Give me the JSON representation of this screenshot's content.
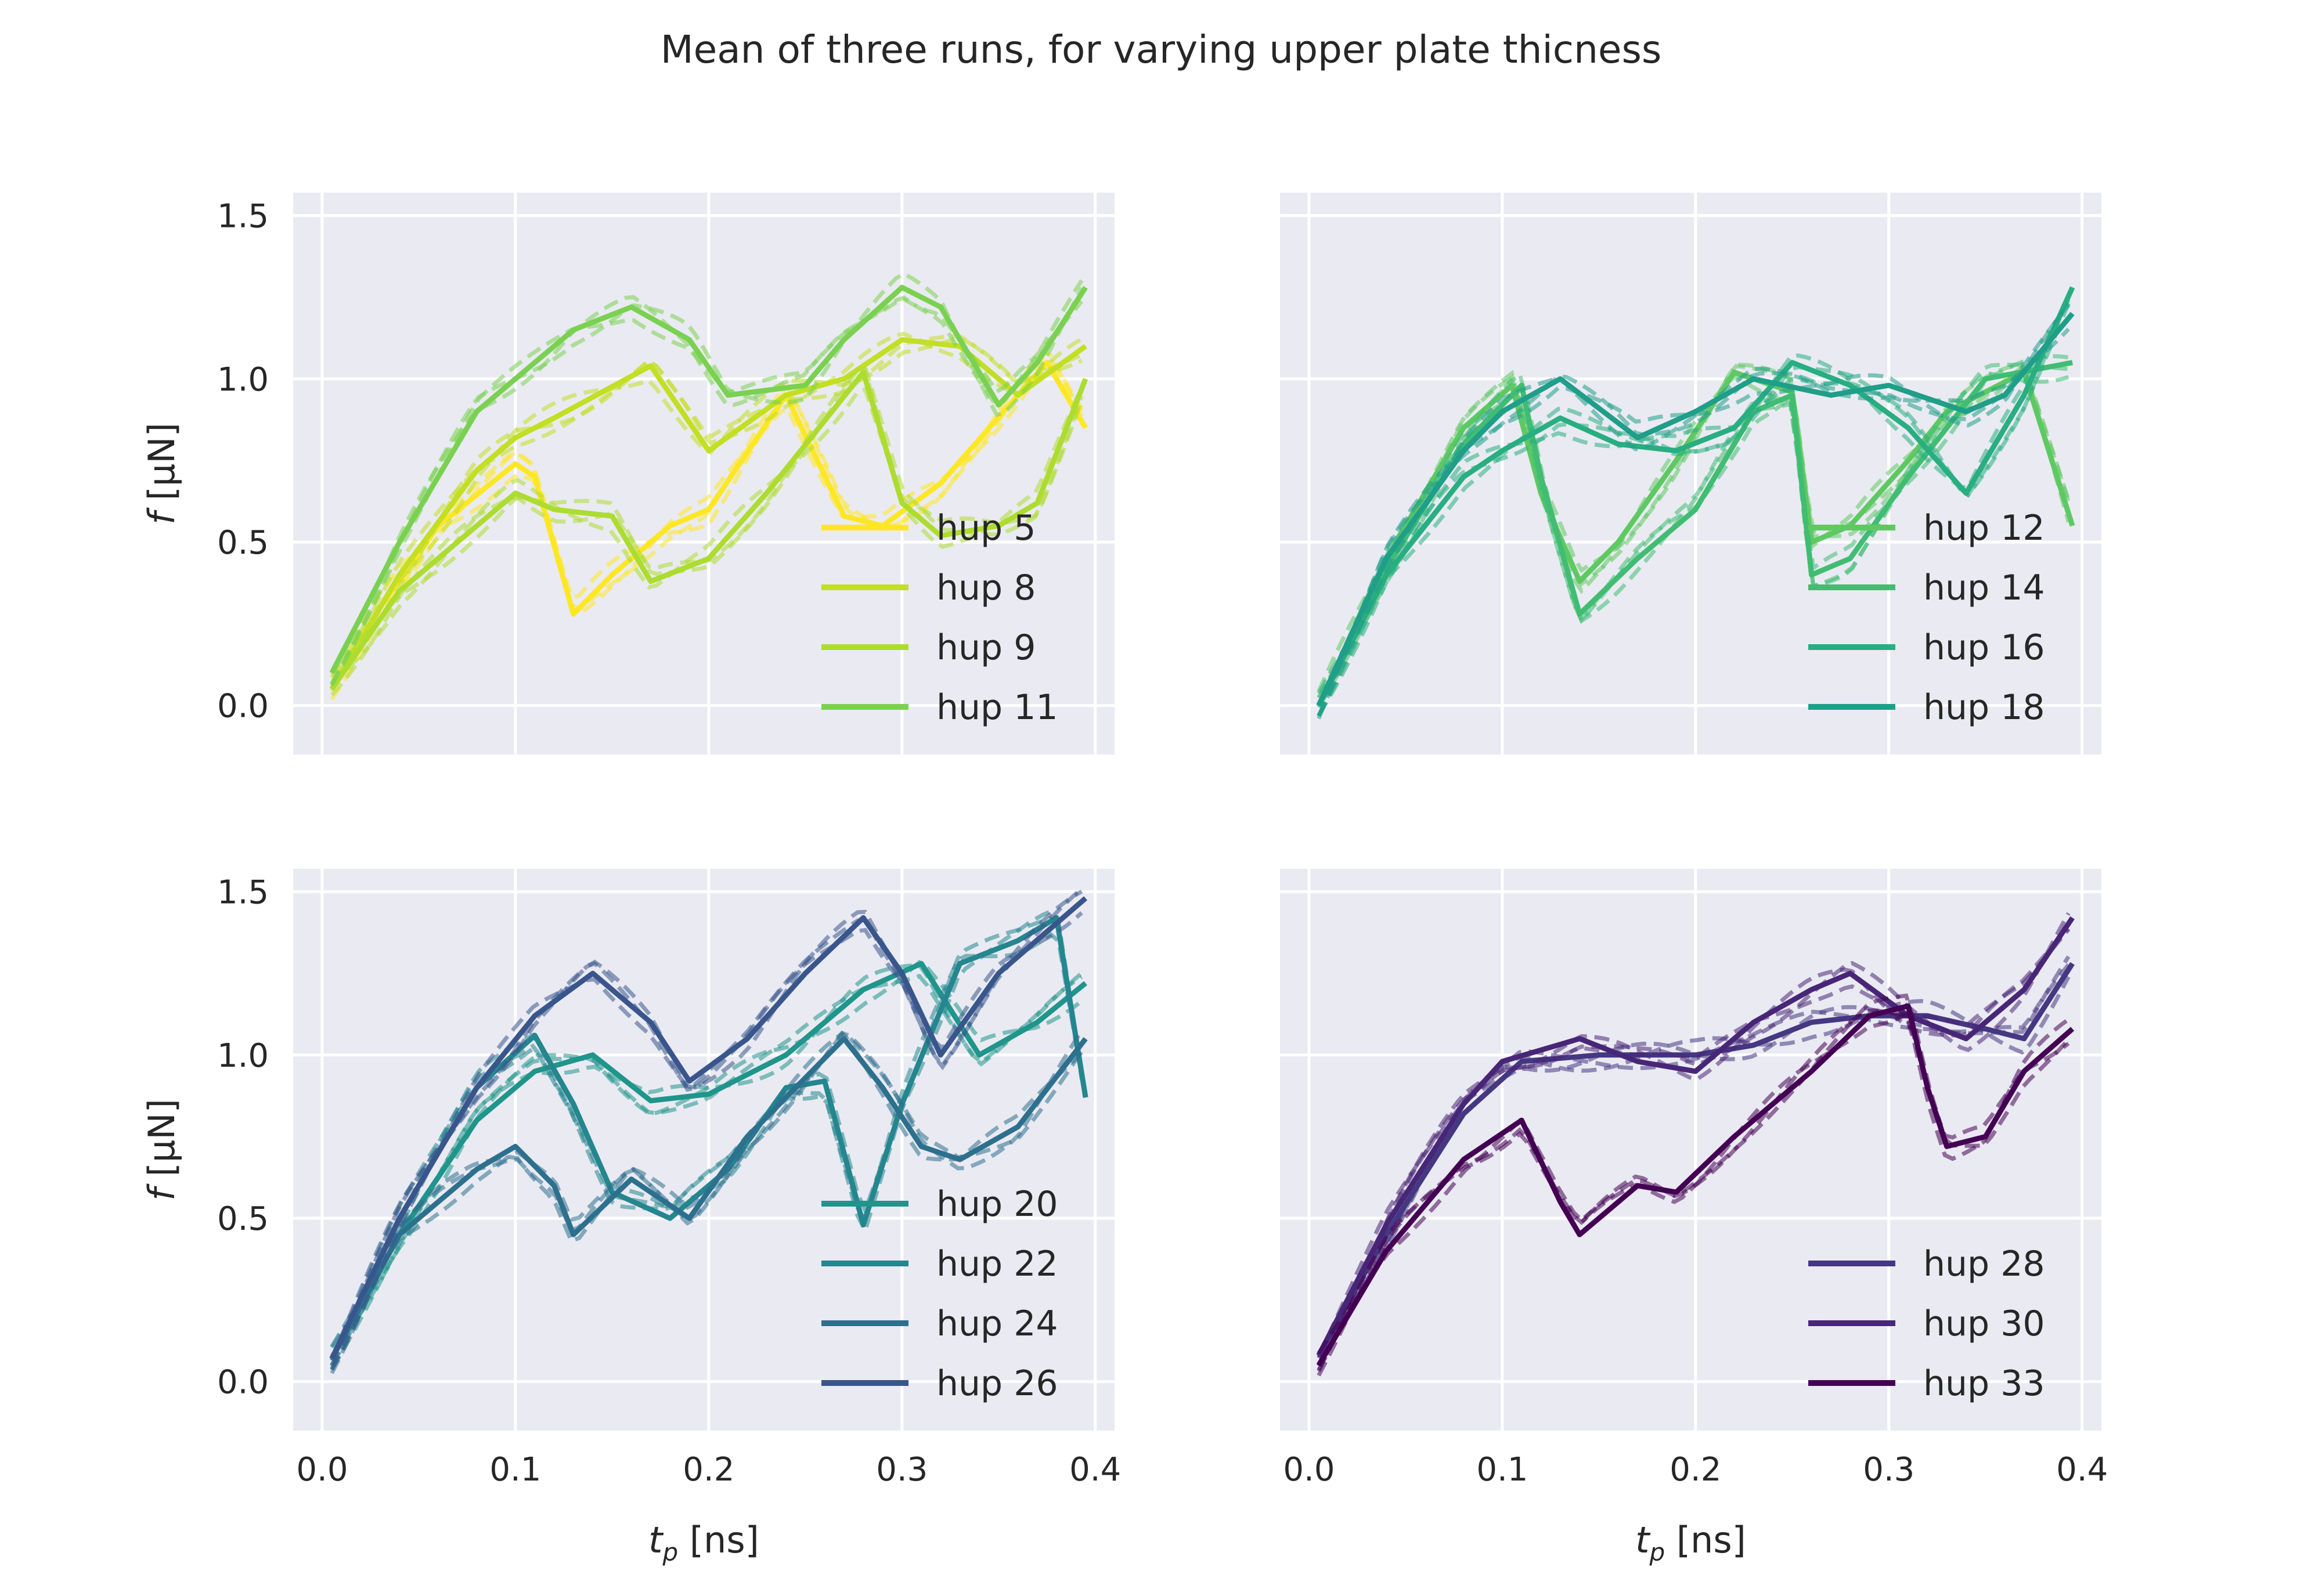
{
  "chart_data": {
    "type": "line",
    "title": "Mean of three runs, for varying upper plate thicness",
    "xlabel_main": "t",
    "xlabel_sub": "p",
    "xlabel_unit": " [ns]",
    "ylabel_main": "f",
    "ylabel_unit": " [μN]",
    "xlim": [
      -0.015,
      0.41
    ],
    "ylim": [
      -0.15,
      1.57
    ],
    "xticks": [
      "0.0",
      "0.1",
      "0.2",
      "0.3",
      "0.4"
    ],
    "xtick_values": [
      0.0,
      0.1,
      0.2,
      0.3,
      0.4
    ],
    "yticks": [
      "0.0",
      "0.5",
      "1.0",
      "1.5"
    ],
    "ytick_values": [
      0.0,
      0.5,
      1.0,
      1.5
    ],
    "line_style": "solid line = mean of three runs; dashed lines = individual runs",
    "panels": [
      {
        "series": [
          {
            "name": "hup 5",
            "color": "#fde725",
            "points": [
              [
                0.005,
                0.05
              ],
              [
                0.03,
                0.3
              ],
              [
                0.06,
                0.55
              ],
              [
                0.1,
                0.74
              ],
              [
                0.11,
                0.7
              ],
              [
                0.13,
                0.28
              ],
              [
                0.15,
                0.4
              ],
              [
                0.18,
                0.55
              ],
              [
                0.2,
                0.6
              ],
              [
                0.24,
                0.95
              ],
              [
                0.27,
                0.58
              ],
              [
                0.29,
                0.55
              ],
              [
                0.32,
                0.68
              ],
              [
                0.36,
                0.95
              ],
              [
                0.375,
                1.05
              ],
              [
                0.395,
                0.85
              ]
            ]
          },
          {
            "name": "hup 8",
            "color": "#c2df23",
            "points": [
              [
                0.005,
                0.05
              ],
              [
                0.04,
                0.4
              ],
              [
                0.08,
                0.72
              ],
              [
                0.1,
                0.82
              ],
              [
                0.12,
                0.88
              ],
              [
                0.17,
                1.04
              ],
              [
                0.2,
                0.78
              ],
              [
                0.24,
                0.95
              ],
              [
                0.27,
                1.0
              ],
              [
                0.3,
                1.12
              ],
              [
                0.33,
                1.1
              ],
              [
                0.36,
                0.95
              ],
              [
                0.395,
                1.1
              ]
            ]
          },
          {
            "name": "hup 9",
            "color": "#addc30",
            "points": [
              [
                0.005,
                0.05
              ],
              [
                0.04,
                0.35
              ],
              [
                0.08,
                0.55
              ],
              [
                0.1,
                0.65
              ],
              [
                0.12,
                0.6
              ],
              [
                0.15,
                0.58
              ],
              [
                0.17,
                0.38
              ],
              [
                0.2,
                0.45
              ],
              [
                0.23,
                0.65
              ],
              [
                0.28,
                1.02
              ],
              [
                0.3,
                0.62
              ],
              [
                0.32,
                0.52
              ],
              [
                0.35,
                0.55
              ],
              [
                0.37,
                0.62
              ],
              [
                0.395,
                1.0
              ]
            ]
          },
          {
            "name": "hup 11",
            "color": "#7ad151",
            "points": [
              [
                0.005,
                0.1
              ],
              [
                0.04,
                0.5
              ],
              [
                0.08,
                0.9
              ],
              [
                0.1,
                1.0
              ],
              [
                0.13,
                1.15
              ],
              [
                0.16,
                1.22
              ],
              [
                0.19,
                1.12
              ],
              [
                0.21,
                0.95
              ],
              [
                0.25,
                0.98
              ],
              [
                0.27,
                1.12
              ],
              [
                0.3,
                1.28
              ],
              [
                0.32,
                1.22
              ],
              [
                0.35,
                0.92
              ],
              [
                0.37,
                1.05
              ],
              [
                0.395,
                1.28
              ]
            ]
          }
        ]
      },
      {
        "series": [
          {
            "name": "hup 12",
            "color": "#5ec962",
            "points": [
              [
                0.005,
                0.0
              ],
              [
                0.04,
                0.45
              ],
              [
                0.08,
                0.85
              ],
              [
                0.105,
                0.98
              ],
              [
                0.12,
                0.65
              ],
              [
                0.14,
                0.38
              ],
              [
                0.16,
                0.5
              ],
              [
                0.19,
                0.75
              ],
              [
                0.22,
                1.02
              ],
              [
                0.25,
                0.96
              ],
              [
                0.26,
                0.5
              ],
              [
                0.28,
                0.55
              ],
              [
                0.31,
                0.75
              ],
              [
                0.33,
                0.9
              ],
              [
                0.37,
                1.02
              ],
              [
                0.395,
                0.55
              ]
            ]
          },
          {
            "name": "hup 14",
            "color": "#40bd72",
            "points": [
              [
                0.005,
                0.0
              ],
              [
                0.04,
                0.42
              ],
              [
                0.08,
                0.8
              ],
              [
                0.11,
                0.98
              ],
              [
                0.12,
                0.7
              ],
              [
                0.14,
                0.28
              ],
              [
                0.17,
                0.45
              ],
              [
                0.2,
                0.6
              ],
              [
                0.23,
                0.9
              ],
              [
                0.25,
                0.95
              ],
              [
                0.26,
                0.4
              ],
              [
                0.28,
                0.45
              ],
              [
                0.31,
                0.7
              ],
              [
                0.35,
                1.0
              ],
              [
                0.395,
                1.05
              ]
            ]
          },
          {
            "name": "hup 16",
            "color": "#28ae80",
            "points": [
              [
                0.005,
                0.0
              ],
              [
                0.04,
                0.4
              ],
              [
                0.08,
                0.7
              ],
              [
                0.1,
                0.78
              ],
              [
                0.13,
                0.88
              ],
              [
                0.16,
                0.8
              ],
              [
                0.19,
                0.78
              ],
              [
                0.22,
                0.85
              ],
              [
                0.25,
                1.05
              ],
              [
                0.28,
                0.98
              ],
              [
                0.31,
                0.85
              ],
              [
                0.34,
                0.65
              ],
              [
                0.37,
                0.95
              ],
              [
                0.395,
                1.28
              ]
            ]
          },
          {
            "name": "hup 18",
            "color": "#1f9e89",
            "points": [
              [
                0.005,
                0.0
              ],
              [
                0.04,
                0.45
              ],
              [
                0.08,
                0.78
              ],
              [
                0.1,
                0.9
              ],
              [
                0.13,
                1.0
              ],
              [
                0.17,
                0.82
              ],
              [
                0.2,
                0.9
              ],
              [
                0.23,
                1.0
              ],
              [
                0.27,
                0.95
              ],
              [
                0.3,
                0.98
              ],
              [
                0.34,
                0.9
              ],
              [
                0.36,
                0.95
              ],
              [
                0.395,
                1.2
              ]
            ]
          }
        ]
      },
      {
        "series": [
          {
            "name": "hup 20",
            "color": "#1f958b",
            "points": [
              [
                0.005,
                0.07
              ],
              [
                0.04,
                0.45
              ],
              [
                0.08,
                0.8
              ],
              [
                0.11,
                0.95
              ],
              [
                0.14,
                1.0
              ],
              [
                0.17,
                0.86
              ],
              [
                0.2,
                0.88
              ],
              [
                0.24,
                1.0
              ],
              [
                0.28,
                1.2
              ],
              [
                0.31,
                1.28
              ],
              [
                0.34,
                1.0
              ],
              [
                0.37,
                1.1
              ],
              [
                0.395,
                1.22
              ]
            ]
          },
          {
            "name": "hup 22",
            "color": "#24868e",
            "points": [
              [
                0.005,
                0.07
              ],
              [
                0.04,
                0.5
              ],
              [
                0.08,
                0.9
              ],
              [
                0.11,
                1.06
              ],
              [
                0.13,
                0.85
              ],
              [
                0.15,
                0.58
              ],
              [
                0.18,
                0.5
              ],
              [
                0.21,
                0.65
              ],
              [
                0.24,
                0.9
              ],
              [
                0.26,
                0.92
              ],
              [
                0.28,
                0.48
              ],
              [
                0.3,
                0.85
              ],
              [
                0.33,
                1.28
              ],
              [
                0.36,
                1.35
              ],
              [
                0.38,
                1.42
              ],
              [
                0.395,
                0.87
              ]
            ]
          },
          {
            "name": "hup 24",
            "color": "#2d708e",
            "points": [
              [
                0.005,
                0.07
              ],
              [
                0.04,
                0.45
              ],
              [
                0.08,
                0.65
              ],
              [
                0.1,
                0.72
              ],
              [
                0.12,
                0.6
              ],
              [
                0.13,
                0.45
              ],
              [
                0.16,
                0.62
              ],
              [
                0.19,
                0.5
              ],
              [
                0.22,
                0.75
              ],
              [
                0.27,
                1.05
              ],
              [
                0.29,
                0.9
              ],
              [
                0.31,
                0.72
              ],
              [
                0.33,
                0.68
              ],
              [
                0.36,
                0.78
              ],
              [
                0.395,
                1.05
              ]
            ]
          },
          {
            "name": "hup 26",
            "color": "#39568c",
            "points": [
              [
                0.005,
                0.07
              ],
              [
                0.04,
                0.5
              ],
              [
                0.08,
                0.9
              ],
              [
                0.11,
                1.12
              ],
              [
                0.14,
                1.25
              ],
              [
                0.17,
                1.1
              ],
              [
                0.19,
                0.92
              ],
              [
                0.22,
                1.05
              ],
              [
                0.25,
                1.25
              ],
              [
                0.28,
                1.42
              ],
              [
                0.3,
                1.25
              ],
              [
                0.32,
                1.0
              ],
              [
                0.35,
                1.25
              ],
              [
                0.395,
                1.48
              ]
            ]
          }
        ]
      },
      {
        "series": [
          {
            "name": "hup 28",
            "color": "#453781",
            "points": [
              [
                0.005,
                0.08
              ],
              [
                0.04,
                0.45
              ],
              [
                0.08,
                0.82
              ],
              [
                0.11,
                0.98
              ],
              [
                0.15,
                1.0
              ],
              [
                0.2,
                1.0
              ],
              [
                0.23,
                1.03
              ],
              [
                0.26,
                1.1
              ],
              [
                0.29,
                1.12
              ],
              [
                0.32,
                1.12
              ],
              [
                0.35,
                1.08
              ],
              [
                0.37,
                1.05
              ],
              [
                0.395,
                1.28
              ]
            ]
          },
          {
            "name": "hup 30",
            "color": "#482677",
            "points": [
              [
                0.005,
                0.08
              ],
              [
                0.04,
                0.48
              ],
              [
                0.08,
                0.85
              ],
              [
                0.1,
                0.98
              ],
              [
                0.14,
                1.05
              ],
              [
                0.17,
                0.98
              ],
              [
                0.2,
                0.95
              ],
              [
                0.23,
                1.1
              ],
              [
                0.26,
                1.2
              ],
              [
                0.28,
                1.25
              ],
              [
                0.31,
                1.12
              ],
              [
                0.34,
                1.05
              ],
              [
                0.37,
                1.2
              ],
              [
                0.395,
                1.42
              ]
            ]
          },
          {
            "name": "hup 33",
            "color": "#440154",
            "points": [
              [
                0.005,
                0.05
              ],
              [
                0.04,
                0.4
              ],
              [
                0.08,
                0.68
              ],
              [
                0.11,
                0.8
              ],
              [
                0.13,
                0.55
              ],
              [
                0.14,
                0.45
              ],
              [
                0.17,
                0.6
              ],
              [
                0.19,
                0.58
              ],
              [
                0.22,
                0.75
              ],
              [
                0.26,
                0.95
              ],
              [
                0.29,
                1.12
              ],
              [
                0.31,
                1.15
              ],
              [
                0.32,
                0.9
              ],
              [
                0.33,
                0.72
              ],
              [
                0.35,
                0.75
              ],
              [
                0.37,
                0.95
              ],
              [
                0.395,
                1.08
              ]
            ]
          }
        ]
      }
    ]
  }
}
